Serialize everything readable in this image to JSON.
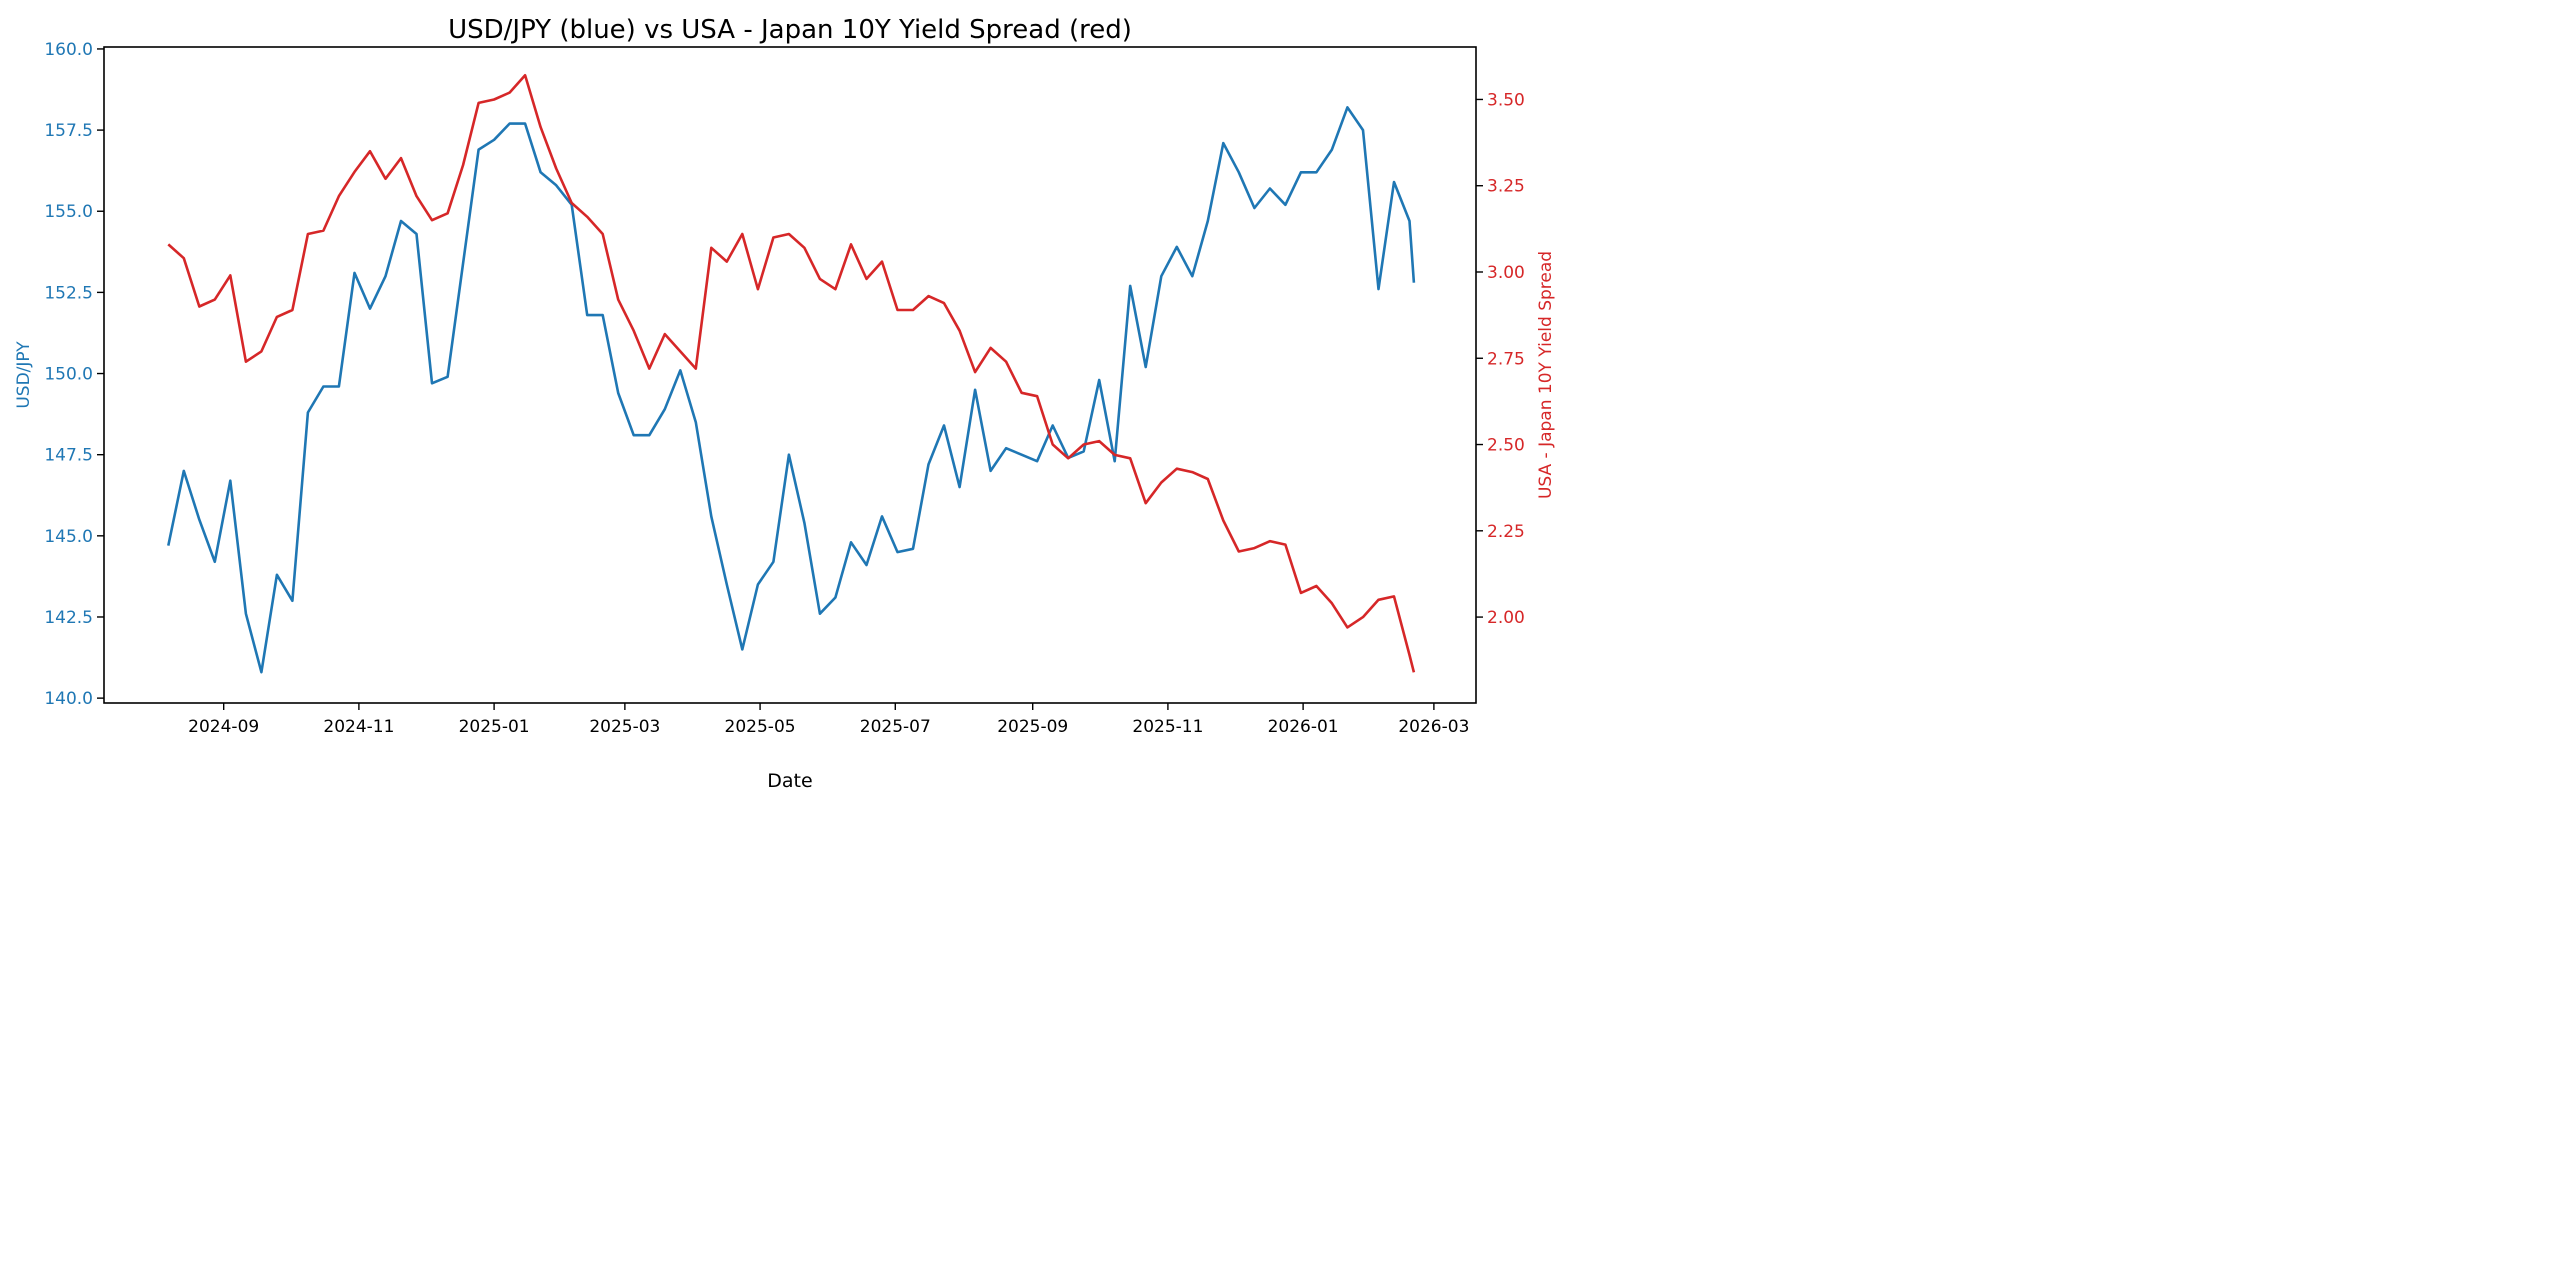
{
  "chart_data": {
    "type": "line",
    "title": "USD/JPY (blue) vs USA - Japan 10Y Yield Spread (red)",
    "xlabel": "Date",
    "ylabel_left": "USD/JPY",
    "ylabel_right": "USA - Japan 10Y Yield Spread",
    "xlim": [
      "2024-07-09",
      "2026-03-20"
    ],
    "ylim_left": [
      139.85,
      160.06
    ],
    "ylim_right": [
      1.751,
      3.652
    ],
    "x_ticks": [
      "2024-09",
      "2024-11",
      "2025-01",
      "2025-03",
      "2025-05",
      "2025-07",
      "2025-09",
      "2025-11",
      "2026-01",
      "2026-03"
    ],
    "y_ticks_left": [
      "140.0",
      "142.5",
      "145.0",
      "147.5",
      "150.0",
      "152.5",
      "155.0",
      "157.5",
      "160.0"
    ],
    "y_ticks_right": [
      "2.00",
      "2.25",
      "2.50",
      "2.75",
      "3.00",
      "3.25",
      "3.50"
    ],
    "grid": false,
    "colors": {
      "left": "#1f77b4",
      "right": "#d62728"
    },
    "x": [
      "2024-08-07",
      "2024-08-14",
      "2024-08-21",
      "2024-08-28",
      "2024-09-04",
      "2024-09-11",
      "2024-09-18",
      "2024-09-25",
      "2024-10-02",
      "2024-10-09",
      "2024-10-16",
      "2024-10-23",
      "2024-10-30",
      "2024-11-06",
      "2024-11-13",
      "2024-11-20",
      "2024-11-27",
      "2024-12-04",
      "2024-12-11",
      "2024-12-18",
      "2024-12-25",
      "2025-01-01",
      "2025-01-08",
      "2025-01-15",
      "2025-01-22",
      "2025-01-29",
      "2025-02-05",
      "2025-02-12",
      "2025-02-19",
      "2025-02-26",
      "2025-03-05",
      "2025-03-12",
      "2025-03-19",
      "2025-03-26",
      "2025-04-02",
      "2025-04-09",
      "2025-04-16",
      "2025-04-23",
      "2025-04-30",
      "2025-05-07",
      "2025-05-14",
      "2025-05-21",
      "2025-05-28",
      "2025-06-04",
      "2025-06-11",
      "2025-06-18",
      "2025-06-25",
      "2025-07-02",
      "2025-07-09",
      "2025-07-16",
      "2025-07-23",
      "2025-07-30",
      "2025-08-06",
      "2025-08-13",
      "2025-08-20",
      "2025-08-27",
      "2025-09-03",
      "2025-09-10",
      "2025-09-17",
      "2025-09-24",
      "2025-10-01",
      "2025-10-08",
      "2025-10-15",
      "2025-10-22",
      "2025-10-29",
      "2025-11-05",
      "2025-11-12",
      "2025-11-19",
      "2025-11-26",
      "2025-12-03",
      "2025-12-10",
      "2025-12-17",
      "2025-12-24",
      "2025-12-31",
      "2026-01-07",
      "2026-01-14",
      "2026-01-21",
      "2026-01-28",
      "2026-02-04",
      "2026-02-11",
      "2026-02-18",
      "2026-02-20"
    ],
    "series": [
      {
        "axis": "left",
        "values": [
          144.7,
          147.0,
          145.5,
          144.2,
          146.7,
          142.6,
          140.8,
          143.8,
          143.0,
          148.8,
          149.6,
          149.6,
          153.1,
          152.0,
          153.0,
          154.7,
          154.3,
          149.7,
          149.9,
          153.4,
          156.9,
          157.2,
          157.7,
          157.7,
          156.2,
          155.8,
          155.2,
          151.8,
          151.8,
          149.4,
          148.1,
          148.1,
          148.9,
          150.1,
          148.5,
          145.6,
          143.5,
          141.5,
          143.5,
          144.2,
          147.5,
          145.4,
          142.6,
          143.1,
          144.8,
          144.1,
          145.6,
          144.5,
          144.6,
          147.2,
          148.4,
          146.5,
          149.5,
          147.0,
          147.7,
          147.5,
          147.3,
          148.4,
          147.4,
          147.6,
          149.8,
          147.3,
          152.7,
          150.2,
          153.0,
          153.9,
          153.0,
          154.7,
          157.1,
          156.2,
          155.1,
          155.7,
          155.2,
          156.2,
          156.2,
          156.9,
          158.2,
          157.5,
          152.6,
          155.9,
          154.7,
          152.8
        ]
      },
      {
        "axis": "right",
        "values": [
          3.08,
          3.04,
          2.9,
          2.92,
          2.99,
          2.74,
          2.77,
          2.87,
          2.89,
          3.11,
          3.12,
          3.22,
          3.29,
          3.35,
          3.27,
          3.33,
          3.22,
          3.15,
          3.17,
          3.31,
          3.49,
          3.5,
          3.52,
          3.57,
          3.42,
          3.3,
          3.2,
          3.16,
          3.11,
          2.92,
          2.83,
          2.72,
          2.82,
          2.77,
          2.72,
          3.07,
          3.03,
          3.11,
          2.95,
          3.1,
          3.11,
          3.07,
          2.98,
          2.95,
          3.08,
          2.98,
          3.03,
          2.89,
          2.89,
          2.93,
          2.91,
          2.83,
          2.71,
          2.78,
          2.74,
          2.65,
          2.64,
          2.5,
          2.46,
          2.5,
          2.51,
          2.47,
          2.46,
          2.33,
          2.39,
          2.43,
          2.42,
          2.4,
          2.28,
          2.19,
          2.2,
          2.22,
          2.21,
          2.07,
          2.09,
          2.04,
          1.97,
          2.0,
          2.05,
          2.06,
          1.89,
          1.84
        ]
      }
    ]
  }
}
